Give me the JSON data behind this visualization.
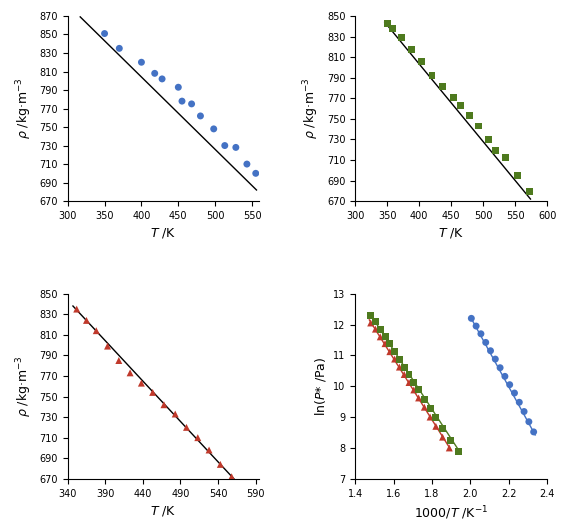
{
  "panel1": {
    "xlabel": "T /K",
    "ylabel": "ρ /kg·m⁻³",
    "xlim": [
      300,
      560
    ],
    "ylim": [
      670,
      870
    ],
    "yticks": [
      670,
      690,
      710,
      730,
      750,
      770,
      790,
      810,
      830,
      850,
      870
    ],
    "xticks": [
      300,
      350,
      400,
      450,
      500,
      550
    ],
    "marker": "o",
    "color": "#4472C4",
    "scatter_x": [
      350,
      370,
      400,
      418,
      428,
      450,
      455,
      468,
      480,
      498,
      513,
      528,
      543,
      555
    ],
    "scatter_y": [
      851,
      835,
      820,
      808,
      802,
      793,
      778,
      775,
      762,
      748,
      730,
      728,
      710,
      700
    ],
    "line_x": [
      317,
      556
    ],
    "line_y": [
      869,
      682
    ]
  },
  "panel2": {
    "xlabel": "T /K",
    "ylabel": "ρ /kg·m⁻³",
    "xlim": [
      300,
      600
    ],
    "ylim": [
      670,
      850
    ],
    "yticks": [
      670,
      690,
      710,
      730,
      750,
      770,
      790,
      810,
      830,
      850
    ],
    "xticks": [
      300,
      350,
      400,
      450,
      500,
      550,
      600
    ],
    "marker": "s",
    "color": "#4E7A1E",
    "scatter_x": [
      350,
      358,
      372,
      388,
      403,
      420,
      437,
      453,
      465,
      478,
      493,
      508,
      520,
      535,
      553,
      572
    ],
    "scatter_y": [
      843,
      838,
      829,
      817,
      806,
      792,
      781,
      771,
      763,
      753,
      743,
      730,
      719,
      712,
      695,
      679
    ],
    "line_x": [
      346,
      574
    ],
    "line_y": [
      844,
      672
    ]
  },
  "panel3": {
    "xlabel": "T /K",
    "ylabel": "ρ /kg·m⁻³",
    "xlim": [
      340,
      595
    ],
    "ylim": [
      670,
      850
    ],
    "yticks": [
      670,
      690,
      710,
      730,
      750,
      770,
      790,
      810,
      830,
      850
    ],
    "xticks": [
      340,
      390,
      440,
      490,
      540,
      590
    ],
    "marker": "^",
    "color": "#C0392B",
    "scatter_x": [
      352,
      365,
      378,
      393,
      408,
      423,
      438,
      453,
      468,
      483,
      498,
      513,
      528,
      543,
      558,
      573
    ],
    "scatter_y": [
      835,
      824,
      814,
      799,
      785,
      773,
      763,
      754,
      742,
      733,
      720,
      710,
      698,
      684,
      672,
      660
    ],
    "line_x": [
      347,
      575
    ],
    "line_y": [
      838,
      659
    ]
  },
  "panel4": {
    "xlabel": "1000/T /K⁻¹",
    "ylabel": "ln(P* /Pa)",
    "xlim": [
      1.4,
      2.4
    ],
    "ylim": [
      7.0,
      13.0
    ],
    "yticks": [
      7,
      8,
      9,
      10,
      11,
      12,
      13
    ],
    "xticks": [
      1.4,
      1.6,
      1.8,
      2.0,
      2.2,
      2.4
    ],
    "series": [
      {
        "marker": "^",
        "color": "#C0392B",
        "scatter_x": [
          1.48,
          1.505,
          1.53,
          1.555,
          1.58,
          1.605,
          1.63,
          1.655,
          1.68,
          1.705,
          1.73,
          1.76,
          1.79,
          1.82,
          1.855,
          1.89
        ],
        "scatter_y": [
          12.05,
          11.85,
          11.6,
          11.38,
          11.12,
          10.88,
          10.62,
          10.38,
          10.12,
          9.88,
          9.62,
          9.32,
          9.0,
          8.7,
          8.35,
          8.0
        ],
        "line_x": [
          1.473,
          1.9
        ],
        "line_y": [
          12.15,
          7.92
        ],
        "line_color": "#C0392B"
      },
      {
        "marker": "s",
        "color": "#4E7A1E",
        "scatter_x": [
          1.48,
          1.505,
          1.53,
          1.555,
          1.58,
          1.605,
          1.63,
          1.655,
          1.68,
          1.705,
          1.73,
          1.76,
          1.79,
          1.82,
          1.855,
          1.895,
          1.94
        ],
        "scatter_y": [
          12.3,
          12.1,
          11.85,
          11.62,
          11.38,
          11.12,
          10.88,
          10.62,
          10.38,
          10.12,
          9.88,
          9.58,
          9.28,
          8.98,
          8.62,
          8.25,
          7.88
        ],
        "line_x": [
          1.473,
          1.95
        ],
        "line_y": [
          12.38,
          7.82
        ],
        "line_color": "#4E7A1E"
      },
      {
        "marker": "o",
        "color": "#4472C4",
        "scatter_x": [
          2.005,
          2.03,
          2.055,
          2.08,
          2.105,
          2.13,
          2.155,
          2.18,
          2.205,
          2.23,
          2.255,
          2.28,
          2.305,
          2.33
        ],
        "scatter_y": [
          12.2,
          11.95,
          11.7,
          11.42,
          11.15,
          10.88,
          10.6,
          10.32,
          10.05,
          9.78,
          9.48,
          9.18,
          8.85,
          8.52
        ],
        "line_x": [
          2.0,
          2.338
        ],
        "line_y": [
          12.25,
          8.42
        ],
        "line_color": "#4472C4"
      }
    ]
  },
  "background_color": "#ffffff",
  "line_color": "#000000",
  "line_width": 1.0,
  "marker_size": 5,
  "tick_fontsize": 7,
  "label_fontsize": 9
}
